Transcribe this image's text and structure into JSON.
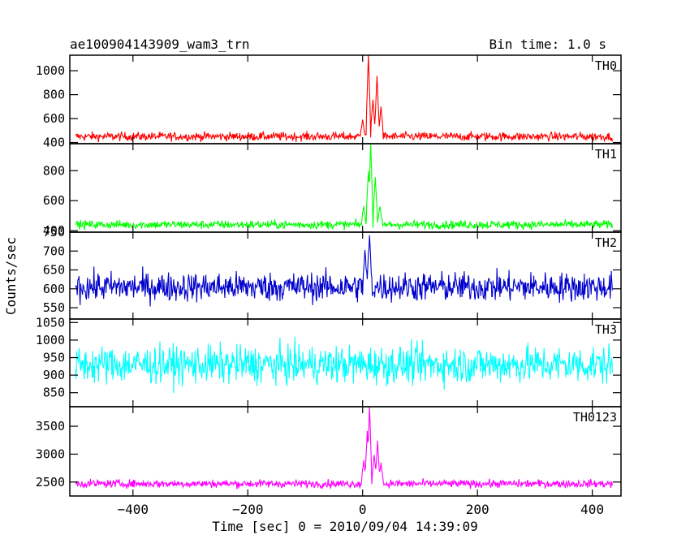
{
  "chart_data": {
    "type": "line",
    "title_left": "ae100904143909_wam3_trn",
    "title_right": "Bin time: 1.0 s",
    "xlabel": "Time [sec] 0 = 2010/09/04 14:39:09",
    "ylabel": "Counts/sec",
    "xlim": [
      -510,
      450
    ],
    "x_range_data": [
      -500,
      435
    ],
    "x_ticks": [
      -400,
      -200,
      0,
      200,
      400
    ],
    "x_tick_labels": [
      "−400",
      "−200",
      "0",
      "200",
      "400"
    ],
    "grid": false,
    "panels": [
      {
        "name": "TH0",
        "color": "#ff0000",
        "ylim": [
          390,
          1130
        ],
        "y_ticks": [
          400,
          600,
          800,
          1000
        ],
        "y_tick_labels": [
          "400",
          "600",
          "800",
          "1000"
        ],
        "baseline": 450,
        "noise": 28,
        "peaks": [
          [
            0,
            600
          ],
          [
            10,
            1130
          ],
          [
            18,
            760
          ],
          [
            25,
            960
          ],
          [
            32,
            700
          ]
        ]
      },
      {
        "name": "TH1",
        "color": "#00ff00",
        "ylim": [
          390,
          980
        ],
        "y_ticks": [
          400,
          600,
          800
        ],
        "y_tick_labels": [
          "400",
          "600",
          "800"
        ],
        "baseline": 440,
        "noise": 22,
        "peaks": [
          [
            2,
            560
          ],
          [
            10,
            810
          ],
          [
            14,
            980
          ],
          [
            22,
            760
          ],
          [
            30,
            560
          ]
        ]
      },
      {
        "name": "TH2",
        "color": "#0000cc",
        "ylim": [
          520,
          750
        ],
        "y_ticks": [
          550,
          600,
          650,
          700,
          750
        ],
        "y_tick_labels": [
          "550",
          "600",
          "650",
          "700",
          "750"
        ],
        "baseline": 605,
        "noise": 30,
        "peaks": [
          [
            4,
            700
          ],
          [
            12,
            740
          ]
        ]
      },
      {
        "name": "TH3",
        "color": "#00ffff",
        "ylim": [
          810,
          1060
        ],
        "y_ticks": [
          850,
          900,
          950,
          1000,
          1050
        ],
        "y_tick_labels": [
          "850",
          "900",
          "950",
          "1000",
          "1050"
        ],
        "baseline": 930,
        "noise": 42,
        "peaks": []
      },
      {
        "name": "TH0123",
        "color": "#ff00ff",
        "ylim": [
          2250,
          3850
        ],
        "y_ticks": [
          2500,
          3000,
          3500
        ],
        "y_tick_labels": [
          "2500",
          "3000",
          "3500"
        ],
        "baseline": 2470,
        "noise": 55,
        "peaks": [
          [
            2,
            2900
          ],
          [
            8,
            3400
          ],
          [
            12,
            3850
          ],
          [
            20,
            3000
          ],
          [
            26,
            3200
          ],
          [
            32,
            2850
          ]
        ]
      }
    ]
  }
}
